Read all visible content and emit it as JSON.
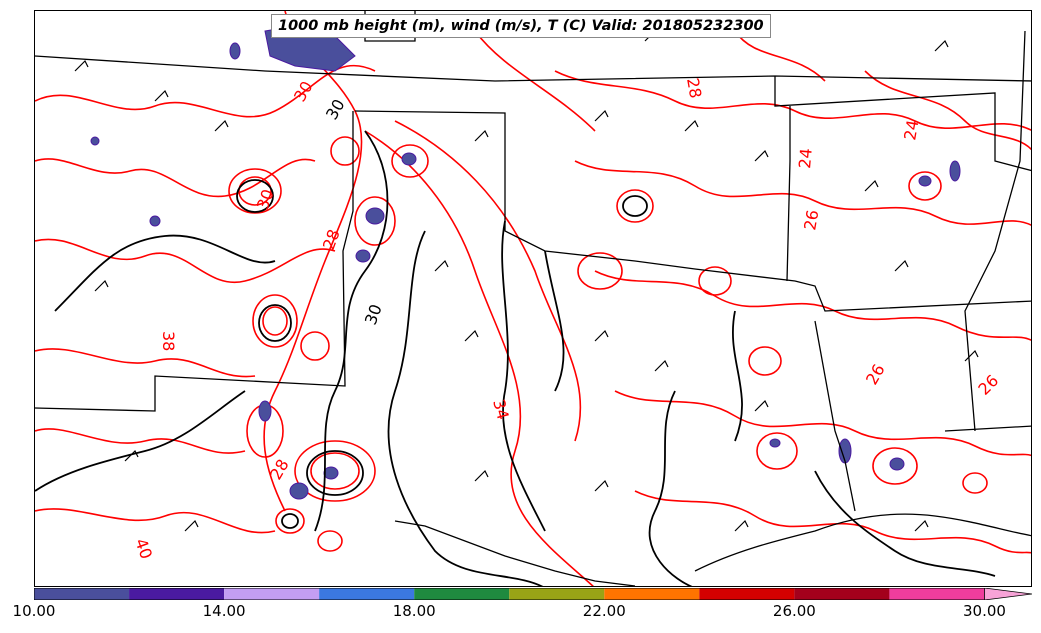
{
  "title": "1000 mb height (m), wind (m/s), T (C) Valid: 201805232300",
  "colorbar": {
    "min": 10,
    "max": 31,
    "tick_labels": [
      "10.00",
      "14.00",
      "18.00",
      "22.00",
      "26.00",
      "30.00"
    ],
    "tick_values": [
      10,
      14,
      18,
      22,
      26,
      30
    ],
    "colors": [
      "#4a4f9c",
      "#4a1aa0",
      "#c39ef3",
      "#3b78e0",
      "#1f8a3f",
      "#99a316",
      "#ff7400",
      "#d40000",
      "#a3001c",
      "#ef3d9d",
      "#f7a3d7"
    ],
    "extend": "max"
  },
  "contour_labels": [
    {
      "text": "28"
    },
    {
      "text": "30"
    },
    {
      "text": "24"
    },
    {
      "text": "24"
    },
    {
      "text": "30"
    },
    {
      "text": "38"
    },
    {
      "text": "30"
    },
    {
      "text": "34"
    },
    {
      "text": "26"
    },
    {
      "text": "26"
    },
    {
      "text": "30"
    },
    {
      "text": "28"
    },
    {
      "text": "26"
    },
    {
      "text": "40"
    },
    {
      "text": "28"
    }
  ],
  "colors": {
    "temperature_contour": "#ff0000",
    "height_contour": "#000000",
    "boundaries": "#000000",
    "wind_barb": "#000000"
  }
}
